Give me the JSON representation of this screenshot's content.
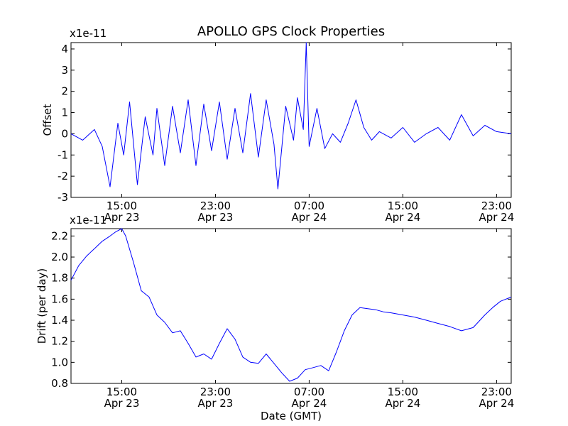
{
  "title": "APOLLO GPS Clock Properties",
  "chart_data": [
    {
      "type": "line",
      "title": "APOLLO GPS Clock Properties",
      "ylabel": "Offset",
      "xlabel": "",
      "y_multiplier": "x1e-11",
      "ylim": [
        -3,
        4.3
      ],
      "yticks": [
        -3,
        -2,
        -1,
        0,
        1,
        2,
        3,
        4
      ],
      "xlim": [
        "2012-04-23 10:40",
        "2012-04-25 00:15"
      ],
      "xticks": [
        {
          "t": "2012-04-23 15:00",
          "time": "15:00",
          "date": "Apr 23"
        },
        {
          "t": "2012-04-23 23:00",
          "time": "23:00",
          "date": "Apr 23"
        },
        {
          "t": "2012-04-24 07:00",
          "time": "07:00",
          "date": "Apr 24"
        },
        {
          "t": "2012-04-24 15:00",
          "time": "15:00",
          "date": "Apr 24"
        },
        {
          "t": "2012-04-24 23:00",
          "time": "23:00",
          "date": "Apr 24"
        }
      ],
      "color": "#0000ff",
      "series": [
        {
          "x": [
            "2012-04-23 10:40",
            "2012-04-23 11:40",
            "2012-04-23 12:40",
            "2012-04-23 13:20",
            "2012-04-23 14:00",
            "2012-04-23 14:40",
            "2012-04-23 15:10",
            "2012-04-23 15:40",
            "2012-04-23 16:20",
            "2012-04-23 17:00",
            "2012-04-23 17:40",
            "2012-04-23 18:00",
            "2012-04-23 18:40",
            "2012-04-23 19:20",
            "2012-04-23 20:00",
            "2012-04-23 20:40",
            "2012-04-23 21:20",
            "2012-04-23 22:00",
            "2012-04-23 22:40",
            "2012-04-23 23:20",
            "2012-04-24 00:00",
            "2012-04-24 00:40",
            "2012-04-24 01:20",
            "2012-04-24 02:00",
            "2012-04-24 02:40",
            "2012-04-24 03:20",
            "2012-04-24 04:00",
            "2012-04-24 04:20",
            "2012-04-24 05:00",
            "2012-04-24 05:40",
            "2012-04-24 06:00",
            "2012-04-24 06:30",
            "2012-04-24 06:45",
            "2012-04-24 07:00",
            "2012-04-24 07:40",
            "2012-04-24 08:20",
            "2012-04-24 09:00",
            "2012-04-24 09:40",
            "2012-04-24 10:20",
            "2012-04-24 11:00",
            "2012-04-24 11:40",
            "2012-04-24 12:20",
            "2012-04-24 13:00",
            "2012-04-24 14:00",
            "2012-04-24 15:00",
            "2012-04-24 16:00",
            "2012-04-24 17:00",
            "2012-04-24 18:00",
            "2012-04-24 19:00",
            "2012-04-24 20:00",
            "2012-04-24 21:00",
            "2012-04-24 22:00",
            "2012-04-24 23:00",
            "2012-04-25 00:15"
          ],
          "values": [
            0.0,
            -0.3,
            0.2,
            -0.6,
            -2.5,
            0.5,
            -1.0,
            1.5,
            -2.4,
            0.8,
            -1.0,
            1.2,
            -1.5,
            1.3,
            -0.9,
            1.6,
            -1.5,
            1.4,
            -0.8,
            1.5,
            -1.2,
            1.2,
            -0.9,
            1.9,
            -1.1,
            1.6,
            -0.5,
            -2.6,
            1.3,
            -0.3,
            1.7,
            0.2,
            4.3,
            -0.6,
            1.2,
            -0.7,
            0.0,
            -0.4,
            0.5,
            1.6,
            0.3,
            -0.3,
            0.1,
            -0.2,
            0.3,
            -0.4,
            0.0,
            0.3,
            -0.3,
            0.9,
            -0.1,
            0.4,
            0.1,
            0.0
          ]
        }
      ]
    },
    {
      "type": "line",
      "title": "",
      "ylabel": "Drift (per day)",
      "xlabel": "Date (GMT)",
      "y_multiplier": "x1e-11",
      "ylim": [
        0.8,
        2.27
      ],
      "yticks": [
        0.8,
        1.0,
        1.2,
        1.4,
        1.6,
        1.8,
        2.0,
        2.2
      ],
      "xlim": [
        "2012-04-23 10:40",
        "2012-04-25 00:15"
      ],
      "xticks": [
        {
          "t": "2012-04-23 15:00",
          "time": "15:00",
          "date": "Apr 23"
        },
        {
          "t": "2012-04-23 23:00",
          "time": "23:00",
          "date": "Apr 23"
        },
        {
          "t": "2012-04-24 07:00",
          "time": "07:00",
          "date": "Apr 24"
        },
        {
          "t": "2012-04-24 15:00",
          "time": "15:00",
          "date": "Apr 24"
        },
        {
          "t": "2012-04-24 23:00",
          "time": "23:00",
          "date": "Apr 24"
        }
      ],
      "color": "#0000ff",
      "series": [
        {
          "x": [
            "2012-04-23 10:40",
            "2012-04-23 11:20",
            "2012-04-23 12:00",
            "2012-04-23 12:40",
            "2012-04-23 13:20",
            "2012-04-23 14:00",
            "2012-04-23 14:30",
            "2012-04-23 15:00",
            "2012-04-23 15:20",
            "2012-04-23 16:00",
            "2012-04-23 16:40",
            "2012-04-23 17:20",
            "2012-04-23 18:00",
            "2012-04-23 18:40",
            "2012-04-23 19:20",
            "2012-04-23 20:00",
            "2012-04-23 20:40",
            "2012-04-23 21:20",
            "2012-04-23 22:00",
            "2012-04-23 22:40",
            "2012-04-23 23:20",
            "2012-04-24 00:00",
            "2012-04-24 00:40",
            "2012-04-24 01:20",
            "2012-04-24 02:00",
            "2012-04-24 02:40",
            "2012-04-24 03:20",
            "2012-04-24 04:00",
            "2012-04-24 04:40",
            "2012-04-24 05:20",
            "2012-04-24 06:00",
            "2012-04-24 06:40",
            "2012-04-24 07:20",
            "2012-04-24 08:00",
            "2012-04-24 08:40",
            "2012-04-24 09:20",
            "2012-04-24 10:00",
            "2012-04-24 10:40",
            "2012-04-24 11:20",
            "2012-04-24 12:00",
            "2012-04-24 12:40",
            "2012-04-24 13:20",
            "2012-04-24 14:00",
            "2012-04-24 15:00",
            "2012-04-24 16:00",
            "2012-04-24 17:00",
            "2012-04-24 18:00",
            "2012-04-24 19:00",
            "2012-04-24 20:00",
            "2012-04-24 21:00",
            "2012-04-24 22:00",
            "2012-04-24 22:40",
            "2012-04-24 23:20",
            "2012-04-25 00:15"
          ],
          "values": [
            1.78,
            1.92,
            2.01,
            2.08,
            2.15,
            2.2,
            2.24,
            2.28,
            2.2,
            1.95,
            1.68,
            1.62,
            1.45,
            1.38,
            1.28,
            1.3,
            1.18,
            1.05,
            1.08,
            1.03,
            1.18,
            1.32,
            1.22,
            1.05,
            1.0,
            0.99,
            1.08,
            0.99,
            0.9,
            0.82,
            0.85,
            0.93,
            0.95,
            0.97,
            0.92,
            1.1,
            1.3,
            1.45,
            1.52,
            1.51,
            1.5,
            1.48,
            1.47,
            1.45,
            1.43,
            1.4,
            1.37,
            1.34,
            1.3,
            1.33,
            1.45,
            1.52,
            1.58,
            1.62
          ]
        }
      ]
    }
  ]
}
